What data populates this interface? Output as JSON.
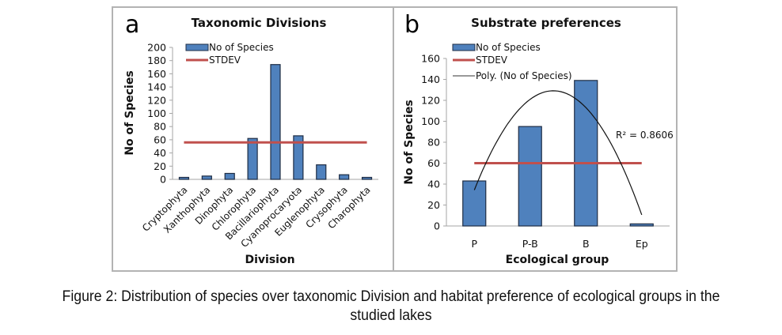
{
  "figure": {
    "caption_line1": "Figure 2: Distribution of species over taxonomic Division and habitat preference of ecological groups in the",
    "caption_line2": "studied lakes"
  },
  "colors": {
    "bar_fill": "#4f81bd",
    "bar_stroke": "#1f2d44",
    "stdev_line": "#c0504d",
    "poly_line": "#111111",
    "border": "#b3b3b3",
    "axis": "#a6a6a6"
  },
  "chart_data": [
    {
      "panel_label": "a",
      "type": "bar",
      "title": "Taxonomic Divisions",
      "xlabel": "Division",
      "ylabel": "No of Species",
      "ylim": [
        0,
        200
      ],
      "yticks": [
        0,
        20,
        40,
        60,
        80,
        100,
        120,
        140,
        160,
        180,
        200
      ],
      "categories": [
        "Cryptophyta",
        "Xanthophyta",
        "Dinophyta",
        "Chlorophyta",
        "Bacillariophyta",
        "Cyanoprocaryota",
        "Euglenophyta",
        "Crysophyta",
        "Charophyta"
      ],
      "series": [
        {
          "name": "No of Species",
          "kind": "bar",
          "values": [
            3,
            5,
            9,
            62,
            174,
            66,
            22,
            7,
            3
          ]
        },
        {
          "name": "STDEV",
          "kind": "line",
          "values": [
            56,
            56,
            56,
            56,
            56,
            56,
            56,
            56,
            56
          ]
        }
      ],
      "legend": [
        "No of Species",
        "STDEV"
      ],
      "legend_position": "top-left",
      "grid": false
    },
    {
      "panel_label": "b",
      "type": "bar",
      "title": "Substrate preferences",
      "xlabel": "Ecological group",
      "ylabel": "No of Species",
      "ylim": [
        0,
        160
      ],
      "yticks": [
        0,
        20,
        40,
        60,
        80,
        100,
        120,
        140,
        160
      ],
      "categories": [
        "P",
        "P-B",
        "B",
        "Ep"
      ],
      "series": [
        {
          "name": "No of Species",
          "kind": "bar",
          "values": [
            43,
            95,
            139,
            2
          ]
        },
        {
          "name": "STDEV",
          "kind": "line",
          "values": [
            60,
            60,
            60,
            60
          ]
        },
        {
          "name": "Poly. (No of Species)",
          "kind": "trendline",
          "order": 2,
          "fit_values": [
            34,
            124,
            122,
            9
          ]
        }
      ],
      "annotation": "R² = 0.8606",
      "legend": [
        "No of Species",
        "STDEV",
        "Poly. (No of Species)"
      ],
      "legend_position": "top-left",
      "grid": false
    }
  ]
}
